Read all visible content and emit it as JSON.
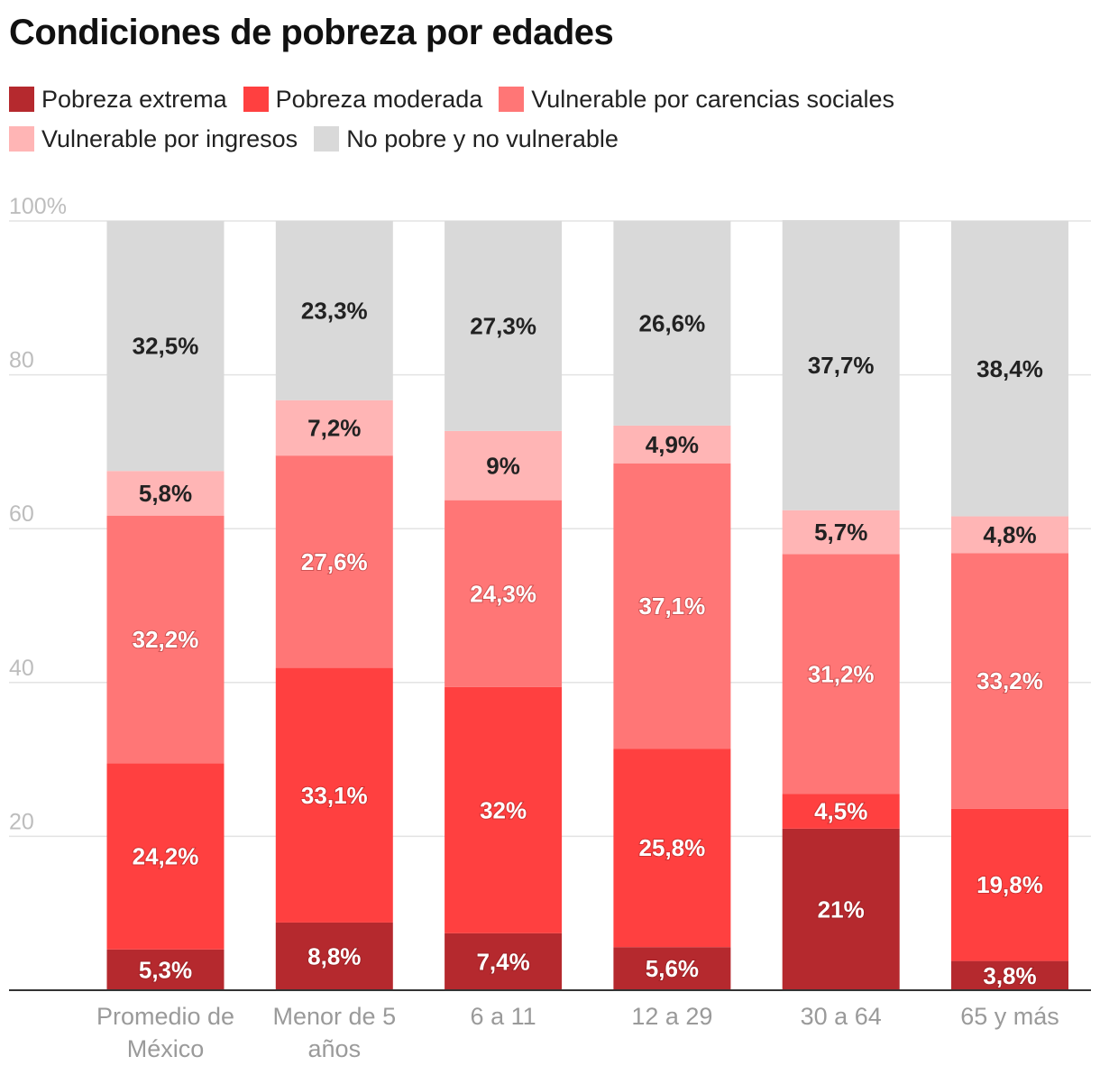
{
  "chart_data": {
    "type": "bar",
    "stacked": true,
    "title": "Condiciones de pobreza por edades",
    "categories": [
      [
        "Promedio de",
        "México"
      ],
      [
        "Menor de 5",
        "años"
      ],
      [
        "6 a 11"
      ],
      [
        "12 a 29"
      ],
      [
        "30 a 64"
      ],
      [
        "65 y más"
      ]
    ],
    "series": [
      {
        "name": "Pobreza extrema",
        "color": "#b5292e",
        "label_color": "#ffffff",
        "values": [
          5.3,
          8.8,
          7.4,
          5.6,
          21,
          3.8
        ],
        "labels": [
          "5,3%",
          "8,8%",
          "7,4%",
          "5,6%",
          "21%",
          "3,8%"
        ]
      },
      {
        "name": "Pobreza moderada",
        "color": "#ff4040",
        "label_color": "#ffffff",
        "values": [
          24.2,
          33.1,
          32,
          25.8,
          4.5,
          19.8
        ],
        "labels": [
          "24,2%",
          "33,1%",
          "32%",
          "25,8%",
          "4,5%",
          "19,8%"
        ]
      },
      {
        "name": "Vulnerable por carencias sociales",
        "color": "#ff7676",
        "label_color": "#ffffff",
        "values": [
          32.2,
          27.6,
          24.3,
          37.1,
          31.2,
          33.2
        ],
        "labels": [
          "32,2%",
          "27,6%",
          "24,3%",
          "37,1%",
          "31,2%",
          "33,2%"
        ]
      },
      {
        "name": "Vulnerable por ingresos",
        "color": "#ffb5b5",
        "label_color": "#222222",
        "values": [
          5.8,
          7.2,
          9,
          4.9,
          5.7,
          4.8
        ],
        "labels": [
          "5,8%",
          "7,2%",
          "9%",
          "4,9%",
          "5,7%",
          "4,8%"
        ]
      },
      {
        "name": "No pobre y no vulnerable",
        "color": "#d9d9d9",
        "label_color": "#222222",
        "values": [
          32.5,
          23.3,
          27.3,
          26.6,
          37.7,
          38.4
        ],
        "labels": [
          "32,5%",
          "23,3%",
          "27,3%",
          "26,6%",
          "37,7%",
          "38,4%"
        ]
      }
    ],
    "ylim": [
      0,
      100
    ],
    "yticks": [
      {
        "value": 0,
        "label": ""
      },
      {
        "value": 20,
        "label": "20"
      },
      {
        "value": 40,
        "label": "40"
      },
      {
        "value": 60,
        "label": "60"
      },
      {
        "value": 80,
        "label": "80"
      },
      {
        "value": 100,
        "label": "100%"
      }
    ],
    "grid": true,
    "legend_position": "top"
  }
}
